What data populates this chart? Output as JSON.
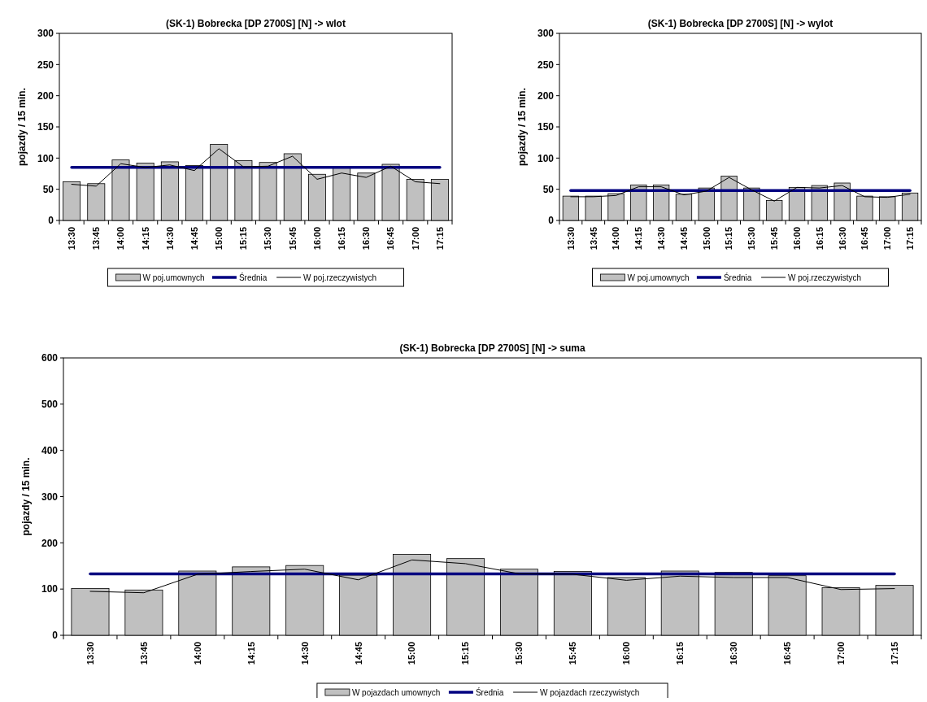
{
  "chart_data": [
    {
      "type": "bar",
      "title": "(SK-1) Bobrecka [DP 2700S] [N] -> wlot",
      "ylabel": "pojazdy / 15 min.",
      "categories": [
        "13:30",
        "13:45",
        "14:00",
        "14:15",
        "14:30",
        "14:45",
        "15:00",
        "15:15",
        "15:30",
        "15:45",
        "16:00",
        "16:15",
        "16:30",
        "16:45",
        "17:00",
        "17:15"
      ],
      "ylim": [
        0,
        300
      ],
      "yticks": [
        0,
        50,
        100,
        150,
        200,
        250,
        300
      ],
      "legend": "bottom",
      "grid": false,
      "series": [
        {
          "name": "W poj.umownych",
          "color": "#c0c0c0",
          "values": [
            62,
            59,
            97,
            92,
            94,
            88,
            122,
            96,
            93,
            107,
            74,
            84,
            76,
            90,
            66,
            66
          ]
        },
        {
          "name": "Średnia",
          "type": "line",
          "color": "#000080",
          "values": [
            85,
            85,
            85,
            85,
            85,
            85,
            85,
            85,
            85,
            85,
            85,
            85,
            85,
            85,
            85,
            85
          ]
        },
        {
          "name": "W poj.rzeczywistych",
          "type": "line",
          "color": "#000000",
          "values": [
            58,
            55,
            91,
            85,
            89,
            80,
            115,
            86,
            87,
            103,
            66,
            76,
            69,
            87,
            62,
            59
          ]
        }
      ]
    },
    {
      "type": "bar",
      "title": "(SK-1) Bobrecka [DP 2700S] [N] -> wylot",
      "ylabel": "pojazdy / 15 min.",
      "categories": [
        "13:30",
        "13:45",
        "14:00",
        "14:15",
        "14:30",
        "14:45",
        "15:00",
        "15:15",
        "15:30",
        "15:45",
        "16:00",
        "16:15",
        "16:30",
        "16:45",
        "17:00",
        "17:15"
      ],
      "ylim": [
        0,
        300
      ],
      "yticks": [
        0,
        50,
        100,
        150,
        200,
        250,
        300
      ],
      "legend": "bottom",
      "grid": false,
      "series": [
        {
          "name": "W poj.umownych",
          "color": "#c0c0c0",
          "values": [
            39,
            39,
            43,
            57,
            57,
            42,
            52,
            71,
            52,
            32,
            53,
            56,
            60,
            39,
            38,
            44
          ]
        },
        {
          "name": "Średnia",
          "type": "line",
          "color": "#000080",
          "values": [
            48,
            48,
            48,
            48,
            48,
            48,
            48,
            48,
            48,
            48,
            48,
            48,
            48,
            48,
            48,
            48
          ]
        },
        {
          "name": "W poj.rzeczywistych",
          "type": "line",
          "color": "#000000",
          "values": [
            38,
            38,
            40,
            54,
            54,
            41,
            47,
            69,
            49,
            31,
            53,
            52,
            56,
            38,
            37,
            42
          ]
        }
      ]
    },
    {
      "type": "bar",
      "title": "(SK-1) Bobrecka [DP 2700S] [N] -> suma",
      "ylabel": "pojazdy / 15 min.",
      "categories": [
        "13:30",
        "13:45",
        "14:00",
        "14:15",
        "14:30",
        "14:45",
        "15:00",
        "15:15",
        "15:30",
        "15:45",
        "16:00",
        "16:15",
        "16:30",
        "16:45",
        "17:00",
        "17:15"
      ],
      "ylim": [
        0,
        600
      ],
      "yticks": [
        0,
        100,
        200,
        300,
        400,
        500,
        600
      ],
      "legend": "bottom",
      "grid": false,
      "series": [
        {
          "name": "W pojazdach umownych",
          "color": "#c0c0c0",
          "values": [
            101,
            98,
            139,
            148,
            151,
            130,
            175,
            166,
            143,
            138,
            125,
            139,
            136,
            129,
            103,
            108
          ]
        },
        {
          "name": "Średnia",
          "type": "line",
          "color": "#000080",
          "values": [
            133,
            133,
            133,
            133,
            133,
            133,
            133,
            133,
            133,
            133,
            133,
            133,
            133,
            133,
            133,
            133
          ]
        },
        {
          "name": "W pojazdach rzeczywistych",
          "type": "line",
          "color": "#000000",
          "values": [
            95,
            92,
            132,
            138,
            143,
            120,
            163,
            155,
            133,
            132,
            119,
            128,
            125,
            125,
            99,
            101
          ]
        }
      ]
    }
  ]
}
